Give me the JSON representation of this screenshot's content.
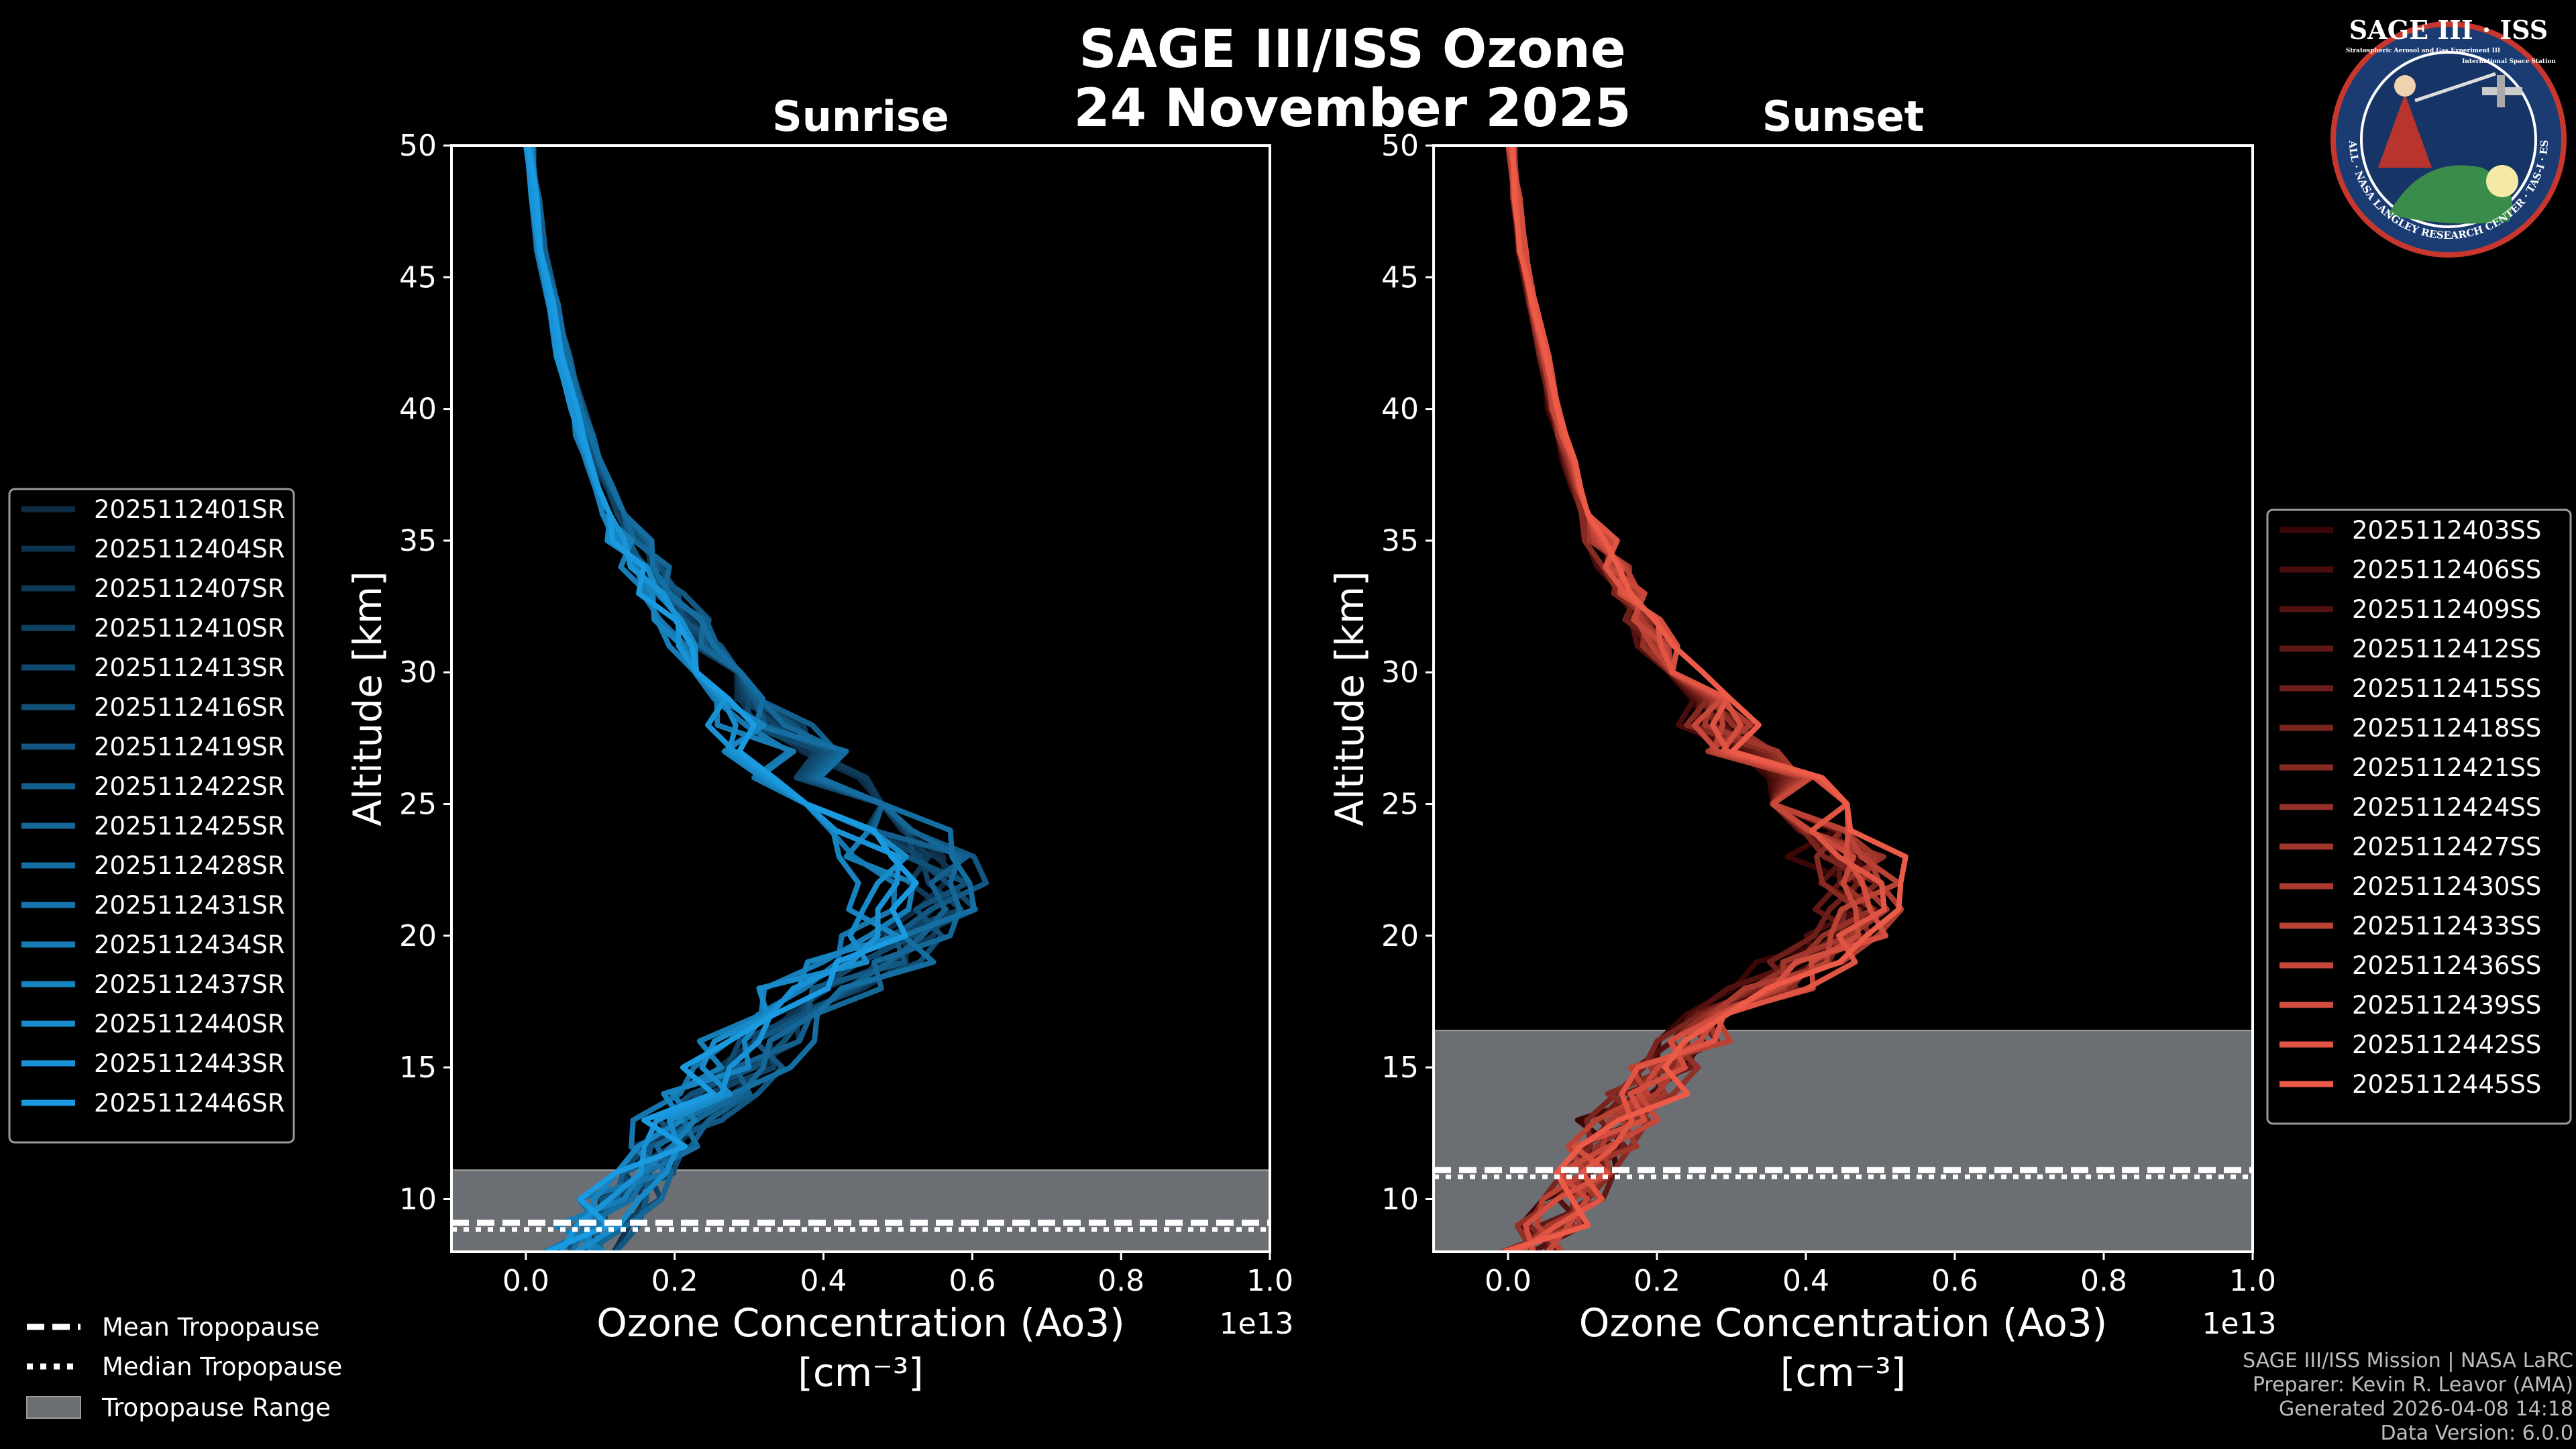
{
  "figure": {
    "title_line1": "SAGE III/ISS Ozone",
    "title_line2": "24 November 2025",
    "footer": [
      "SAGE III/ISS Mission | NASA LaRC",
      "Preparer: Kevin R. Leavor (AMA)",
      "Generated 2026-04-08 14:18",
      "Data Version: 6.0.0"
    ],
    "logo": {
      "title": "SAGE III · ISS",
      "subtitle": "Stratospheric Aerosol and Gas Experiment III",
      "right_note": "International Space Station",
      "ring_text": "BALL · NASA LANGLEY RESEARCH CENTER · TAS-I · ESA"
    },
    "tropo_legend": [
      {
        "style": "dashed",
        "label": "Mean Tropopause"
      },
      {
        "style": "dotted",
        "label": "Median Tropopause"
      },
      {
        "style": "range",
        "label": "Tropopause Range",
        "color": "#6b6e72"
      }
    ]
  },
  "chart_data": [
    {
      "type": "line",
      "title": "Sunrise",
      "xlabel_line1": "Ozone Concentration (Ao3)",
      "xlabel_line2": "[cm⁻³]",
      "ylabel": "Altitude [km]",
      "x_scale_label": "1e13",
      "xlim": [
        -0.1,
        1.0
      ],
      "ylim": [
        8,
        50
      ],
      "xticks": [
        "0.0",
        "0.2",
        "0.4",
        "0.6",
        "0.8",
        "1.0"
      ],
      "yticks": [
        "10",
        "15",
        "20",
        "25",
        "30",
        "35",
        "40",
        "45",
        "50"
      ],
      "legend_position": "left",
      "color_start": "#0d2c44",
      "color_end": "#1a9ae0",
      "tropopause": {
        "mean": 9.1,
        "median": 9.1,
        "min": 8.0,
        "max": 11.1
      },
      "series_names": [
        "2025112401SR",
        "2025112404SR",
        "2025112407SR",
        "2025112410SR",
        "2025112413SR",
        "2025112416SR",
        "2025112419SR",
        "2025112422SR",
        "2025112425SR",
        "2025112428SR",
        "2025112431SR",
        "2025112434SR",
        "2025112437SR",
        "2025112440SR",
        "2025112443SR",
        "2025112446SR"
      ],
      "profile": {
        "altitude_km": [
          8,
          9,
          10,
          11,
          12,
          13,
          14,
          15,
          16,
          17,
          18,
          19,
          20,
          21,
          22,
          23,
          24,
          25,
          26,
          27,
          28,
          29,
          30,
          31,
          32,
          33,
          34,
          35,
          36,
          37,
          38,
          39,
          40,
          42,
          44,
          46,
          48,
          50
        ],
        "mean_ozone_1e13": [
          0.07,
          0.1,
          0.13,
          0.16,
          0.18,
          0.21,
          0.25,
          0.28,
          0.31,
          0.35,
          0.4,
          0.45,
          0.5,
          0.53,
          0.53,
          0.51,
          0.47,
          0.43,
          0.39,
          0.35,
          0.32,
          0.29,
          0.26,
          0.23,
          0.21,
          0.18,
          0.16,
          0.14,
          0.12,
          0.105,
          0.09,
          0.08,
          0.07,
          0.05,
          0.035,
          0.02,
          0.012,
          0.005
        ]
      }
    },
    {
      "type": "line",
      "title": "Sunset",
      "xlabel_line1": "Ozone Concentration (Ao3)",
      "xlabel_line2": "[cm⁻³]",
      "ylabel": "Altitude [km]",
      "x_scale_label": "1e13",
      "xlim": [
        -0.1,
        1.0
      ],
      "ylim": [
        8,
        50
      ],
      "xticks": [
        "0.0",
        "0.2",
        "0.4",
        "0.6",
        "0.8",
        "1.0"
      ],
      "yticks": [
        "10",
        "15",
        "20",
        "25",
        "30",
        "35",
        "40",
        "45",
        "50"
      ],
      "legend_position": "right",
      "color_start": "#3a0606",
      "color_end": "#ec5a48",
      "tropopause": {
        "mean": 11.1,
        "median": 11.1,
        "min": 8.0,
        "max": 16.4
      },
      "series_names": [
        "2025112403SS",
        "2025112406SS",
        "2025112409SS",
        "2025112412SS",
        "2025112415SS",
        "2025112418SS",
        "2025112421SS",
        "2025112424SS",
        "2025112427SS",
        "2025112430SS",
        "2025112433SS",
        "2025112436SS",
        "2025112439SS",
        "2025112442SS",
        "2025112445SS"
      ],
      "profile": {
        "altitude_km": [
          8,
          9,
          10,
          11,
          12,
          13,
          14,
          15,
          16,
          17,
          18,
          19,
          20,
          21,
          22,
          23,
          24,
          25,
          26,
          27,
          28,
          29,
          30,
          31,
          32,
          33,
          34,
          35,
          36,
          37,
          38,
          39,
          40,
          42,
          44,
          46,
          48,
          50
        ],
        "mean_ozone_1e13": [
          0.04,
          0.06,
          0.09,
          0.11,
          0.13,
          0.16,
          0.19,
          0.22,
          0.26,
          0.31,
          0.37,
          0.43,
          0.48,
          0.5,
          0.5,
          0.48,
          0.45,
          0.41,
          0.37,
          0.33,
          0.3,
          0.27,
          0.24,
          0.21,
          0.19,
          0.17,
          0.15,
          0.13,
          0.11,
          0.1,
          0.085,
          0.075,
          0.065,
          0.05,
          0.035,
          0.02,
          0.012,
          0.005
        ]
      }
    }
  ]
}
